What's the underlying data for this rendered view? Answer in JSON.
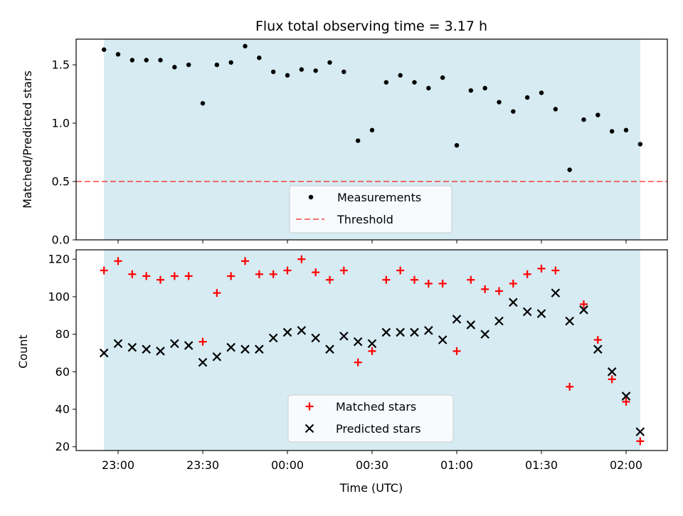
{
  "chart_data": [
    {
      "type": "scatter",
      "title": "Flux total observing time = 3.17 h",
      "ylabel": "Matched/Predicted stars",
      "xlabel": "",
      "ylim": [
        0,
        1.72
      ],
      "yticks": [
        "0.0",
        "0.5",
        "1.0",
        "1.5"
      ],
      "ytick_values": [
        0,
        0.5,
        1.0,
        1.5
      ],
      "threshold": 0.5,
      "shaded_range": [
        "22:55",
        "02:05"
      ],
      "grid": false,
      "legend_position": "lower-center",
      "colors": {
        "shade": "#add8e6",
        "measurements": "#000000",
        "threshold": "#ff0000"
      },
      "series": [
        {
          "name": "Measurements",
          "marker": "dot",
          "x": [
            "22:55",
            "23:00",
            "23:05",
            "23:10",
            "23:15",
            "23:20",
            "23:25",
            "23:30",
            "23:35",
            "23:40",
            "23:45",
            "23:50",
            "23:55",
            "00:00",
            "00:05",
            "00:10",
            "00:15",
            "00:20",
            "00:25",
            "00:30",
            "00:35",
            "00:40",
            "00:45",
            "00:50",
            "00:55",
            "01:00",
            "01:05",
            "01:10",
            "01:15",
            "01:20",
            "01:25",
            "01:30",
            "01:35",
            "01:40",
            "01:45",
            "01:50",
            "01:55",
            "02:00",
            "02:05"
          ],
          "y": [
            1.63,
            1.59,
            1.54,
            1.54,
            1.54,
            1.48,
            1.5,
            1.17,
            1.5,
            1.52,
            1.66,
            1.56,
            1.44,
            1.41,
            1.46,
            1.45,
            1.52,
            1.44,
            0.85,
            0.94,
            1.35,
            1.41,
            1.35,
            1.3,
            1.39,
            0.81,
            1.28,
            1.3,
            1.18,
            1.1,
            1.22,
            1.26,
            1.12,
            0.6,
            1.03,
            1.07,
            0.93,
            0.94,
            0.82
          ]
        },
        {
          "name": "Threshold",
          "marker": "dashed-line",
          "y": 0.5
        }
      ]
    },
    {
      "type": "scatter",
      "title": "",
      "ylabel": "Count",
      "xlabel": "Time (UTC)",
      "ylim": [
        18,
        125
      ],
      "yticks": [
        "20",
        "40",
        "60",
        "80",
        "100",
        "120"
      ],
      "ytick_values": [
        20,
        40,
        60,
        80,
        100,
        120
      ],
      "xticks": [
        "23:00",
        "23:30",
        "00:00",
        "00:30",
        "01:00",
        "01:30",
        "02:00"
      ],
      "shaded_range": [
        "22:55",
        "02:05"
      ],
      "grid": false,
      "legend_position": "lower-center",
      "colors": {
        "shade": "#add8e6",
        "matched": "#ff0000",
        "predicted": "#000000"
      },
      "series": [
        {
          "name": "Matched stars",
          "marker": "plus",
          "x": [
            "22:55",
            "23:00",
            "23:05",
            "23:10",
            "23:15",
            "23:20",
            "23:25",
            "23:30",
            "23:35",
            "23:40",
            "23:45",
            "23:50",
            "23:55",
            "00:00",
            "00:05",
            "00:10",
            "00:15",
            "00:20",
            "00:25",
            "00:30",
            "00:35",
            "00:40",
            "00:45",
            "00:50",
            "00:55",
            "01:00",
            "01:05",
            "01:10",
            "01:15",
            "01:20",
            "01:25",
            "01:30",
            "01:35",
            "01:40",
            "01:45",
            "01:50",
            "01:55",
            "02:00",
            "02:05"
          ],
          "y": [
            114,
            119,
            112,
            111,
            109,
            111,
            111,
            76,
            102,
            111,
            119,
            112,
            112,
            114,
            120,
            113,
            109,
            114,
            65,
            71,
            109,
            114,
            109,
            107,
            107,
            71,
            109,
            104,
            103,
            107,
            112,
            115,
            114,
            52,
            96,
            77,
            56,
            44,
            23
          ]
        },
        {
          "name": "Predicted stars",
          "marker": "x",
          "x": [
            "22:55",
            "23:00",
            "23:05",
            "23:10",
            "23:15",
            "23:20",
            "23:25",
            "23:30",
            "23:35",
            "23:40",
            "23:45",
            "23:50",
            "23:55",
            "00:00",
            "00:05",
            "00:10",
            "00:15",
            "00:20",
            "00:25",
            "00:30",
            "00:35",
            "00:40",
            "00:45",
            "00:50",
            "00:55",
            "01:00",
            "01:05",
            "01:10",
            "01:15",
            "01:20",
            "01:25",
            "01:30",
            "01:35",
            "01:40",
            "01:45",
            "01:50",
            "01:55",
            "02:00",
            "02:05"
          ],
          "y": [
            70,
            75,
            73,
            72,
            71,
            75,
            74,
            65,
            68,
            73,
            72,
            72,
            78,
            81,
            82,
            78,
            72,
            79,
            76,
            75,
            81,
            81,
            81,
            82,
            77,
            88,
            85,
            80,
            87,
            97,
            92,
            91,
            102,
            87,
            93,
            72,
            60,
            47,
            28
          ]
        }
      ]
    }
  ]
}
